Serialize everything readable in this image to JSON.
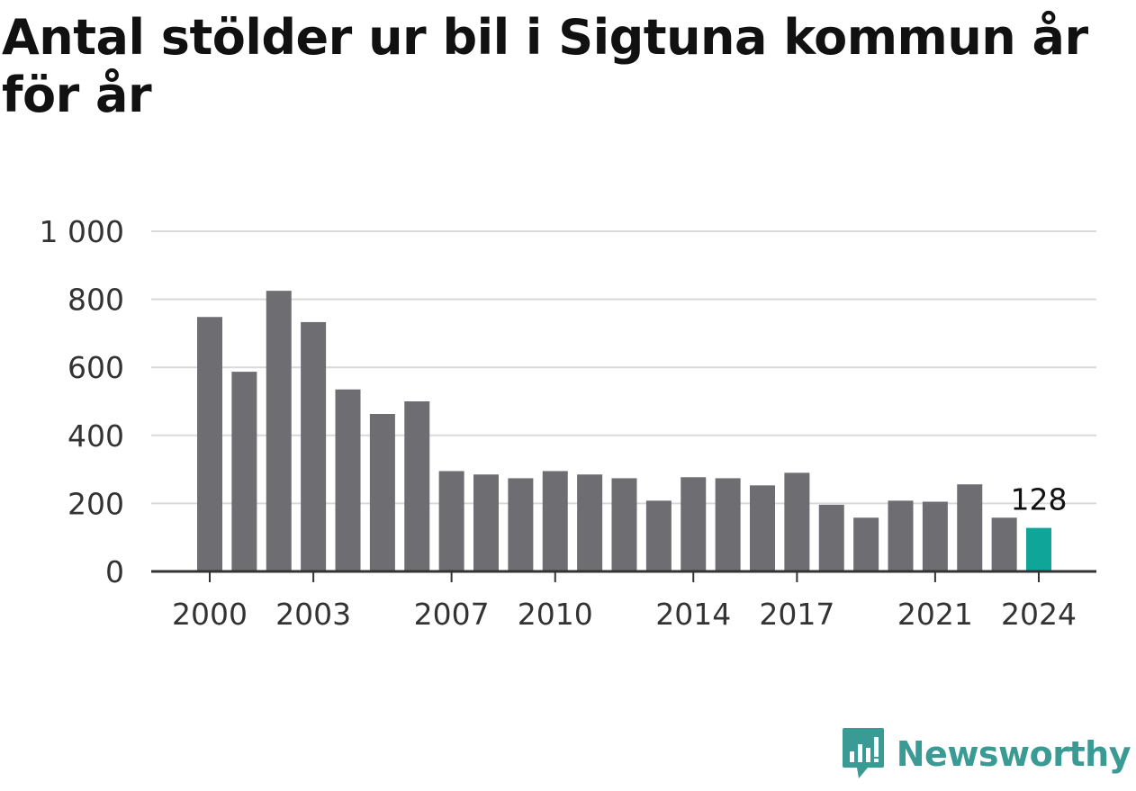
{
  "chart_data": {
    "type": "bar",
    "title": "Antal stölder ur bil i Sigtuna kommun år för år",
    "xlabel": "",
    "ylabel": "",
    "categories": [
      "2000",
      "2001",
      "2002",
      "2003",
      "2004",
      "2005",
      "2006",
      "2007",
      "2008",
      "2009",
      "2010",
      "2011",
      "2012",
      "2013",
      "2014",
      "2015",
      "2016",
      "2017",
      "2018",
      "2019",
      "2020",
      "2021",
      "2022",
      "2023",
      "2024"
    ],
    "values": [
      748,
      587,
      825,
      733,
      535,
      463,
      500,
      295,
      285,
      274,
      295,
      285,
      274,
      208,
      277,
      274,
      253,
      290,
      196,
      158,
      208,
      205,
      256,
      158,
      128
    ],
    "x_tick_labels": [
      "2000",
      "2003",
      "2007",
      "2010",
      "2014",
      "2017",
      "2021",
      "2024"
    ],
    "y_ticks": [
      0,
      200,
      400,
      600,
      800,
      1000
    ],
    "y_tick_labels": [
      "0",
      "200",
      "400",
      "600",
      "800",
      "1 000"
    ],
    "ylim": [
      0,
      1000
    ],
    "grid": true,
    "highlight_category": "2024",
    "highlight_label": "128",
    "colors": {
      "bar": "#6e6d72",
      "highlight": "#0fa598",
      "grid": "#d9d9d9",
      "axis": "#333333"
    }
  },
  "brand": {
    "name": "Newsworthy",
    "icon": "newsworthy-logo-icon",
    "color": "#3a9b94"
  }
}
